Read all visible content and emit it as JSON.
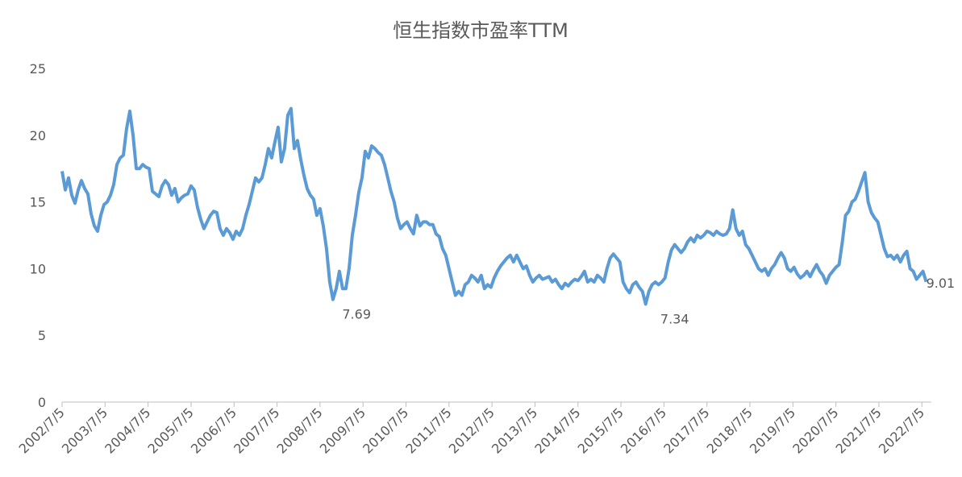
{
  "chart_data": {
    "type": "line",
    "title": "恒生指数市盈率TTM",
    "x": [
      2002.5,
      2002.575,
      2002.65,
      2002.725,
      2002.8,
      2002.875,
      2002.95,
      2003.025,
      2003.1,
      2003.175,
      2003.25,
      2003.325,
      2003.4,
      2003.475,
      2003.55,
      2003.625,
      2003.7,
      2003.775,
      2003.85,
      2003.925,
      2004,
      2004.075,
      2004.15,
      2004.225,
      2004.3,
      2004.375,
      2004.45,
      2004.525,
      2004.6,
      2004.675,
      2004.75,
      2004.825,
      2004.9,
      2004.975,
      2005.05,
      2005.125,
      2005.2,
      2005.275,
      2005.35,
      2005.425,
      2005.5,
      2005.575,
      2005.65,
      2005.725,
      2005.8,
      2005.875,
      2005.95,
      2006.025,
      2006.1,
      2006.175,
      2006.25,
      2006.325,
      2006.4,
      2006.475,
      2006.55,
      2006.625,
      2006.7,
      2006.775,
      2006.85,
      2006.925,
      2007,
      2007.075,
      2007.15,
      2007.225,
      2007.3,
      2007.375,
      2007.45,
      2007.525,
      2007.6,
      2007.675,
      2007.75,
      2007.825,
      2007.9,
      2007.975,
      2008.05,
      2008.125,
      2008.2,
      2008.275,
      2008.35,
      2008.425,
      2008.5,
      2008.575,
      2008.65,
      2008.725,
      2008.8,
      2008.875,
      2008.95,
      2009.025,
      2009.1,
      2009.175,
      2009.25,
      2009.325,
      2009.4,
      2009.475,
      2009.55,
      2009.625,
      2009.7,
      2009.775,
      2009.85,
      2009.925,
      2010,
      2010.075,
      2010.15,
      2010.225,
      2010.3,
      2010.375,
      2010.45,
      2010.525,
      2010.6,
      2010.675,
      2010.75,
      2010.825,
      2010.9,
      2010.975,
      2011.05,
      2011.125,
      2011.2,
      2011.275,
      2011.35,
      2011.425,
      2011.5,
      2011.575,
      2011.65,
      2011.725,
      2011.8,
      2011.875,
      2011.95,
      2012.025,
      2012.1,
      2012.175,
      2012.25,
      2012.325,
      2012.4,
      2012.475,
      2012.55,
      2012.625,
      2012.7,
      2012.775,
      2012.85,
      2012.925,
      2013,
      2013.075,
      2013.15,
      2013.225,
      2013.3,
      2013.375,
      2013.45,
      2013.525,
      2013.6,
      2013.675,
      2013.75,
      2013.825,
      2013.9,
      2013.975,
      2014.05,
      2014.125,
      2014.2,
      2014.275,
      2014.35,
      2014.425,
      2014.5,
      2014.575,
      2014.65,
      2014.725,
      2014.8,
      2014.875,
      2014.95,
      2015.025,
      2015.1,
      2015.175,
      2015.25,
      2015.325,
      2015.4,
      2015.475,
      2015.55,
      2015.625,
      2015.7,
      2015.775,
      2015.85,
      2015.925,
      2016,
      2016.075,
      2016.15,
      2016.225,
      2016.3,
      2016.375,
      2016.45,
      2016.525,
      2016.6,
      2016.675,
      2016.75,
      2016.825,
      2016.9,
      2016.975,
      2017.05,
      2017.125,
      2017.2,
      2017.275,
      2017.35,
      2017.425,
      2017.5,
      2017.575,
      2017.65,
      2017.725,
      2017.8,
      2017.875,
      2017.95,
      2018.025,
      2018.1,
      2018.175,
      2018.25,
      2018.325,
      2018.4,
      2018.475,
      2018.55,
      2018.625,
      2018.7,
      2018.775,
      2018.85,
      2018.925,
      2019,
      2019.075,
      2019.15,
      2019.225,
      2019.3,
      2019.375,
      2019.45,
      2019.525,
      2019.6,
      2019.675,
      2019.75,
      2019.825,
      2019.9,
      2019.975,
      2020.05,
      2020.125,
      2020.2,
      2020.275,
      2020.35,
      2020.425,
      2020.5,
      2020.575,
      2020.65,
      2020.725,
      2020.8,
      2020.875,
      2020.95,
      2021.025,
      2021.1,
      2021.175,
      2021.25,
      2021.325,
      2021.4,
      2021.475,
      2021.55,
      2021.625,
      2021.7,
      2021.775,
      2021.85,
      2021.925,
      2022,
      2022.075,
      2022.15,
      2022.225,
      2022.3,
      2022.375,
      2022.45,
      2022.525,
      2022.6
    ],
    "series": [
      {
        "color": "#5b9bd5",
        "values": [
          17.3,
          15.9,
          16.8,
          15.5,
          14.9,
          15.9,
          16.6,
          16.0,
          15.6,
          14.1,
          13.2,
          12.8,
          14.0,
          14.8,
          15.0,
          15.5,
          16.3,
          17.8,
          18.3,
          18.5,
          20.5,
          21.8,
          20.0,
          17.5,
          17.5,
          17.8,
          17.6,
          17.5,
          15.8,
          15.6,
          15.4,
          16.2,
          16.6,
          16.3,
          15.5,
          16.0,
          15.0,
          15.3,
          15.5,
          15.6,
          16.2,
          15.9,
          14.6,
          13.7,
          13.0,
          13.5,
          14.0,
          14.3,
          14.2,
          13.0,
          12.5,
          13.0,
          12.7,
          12.2,
          12.8,
          12.5,
          13.0,
          14.0,
          14.8,
          15.8,
          16.8,
          16.5,
          16.8,
          17.8,
          19.0,
          18.3,
          19.5,
          20.6,
          18.0,
          19.0,
          21.5,
          22.0,
          19.0,
          19.6,
          18.2,
          17.0,
          16.0,
          15.5,
          15.2,
          14.0,
          14.5,
          13.2,
          11.5,
          9.0,
          7.69,
          8.5,
          9.8,
          8.5,
          8.5,
          10.0,
          12.5,
          14.0,
          15.7,
          16.8,
          18.8,
          18.3,
          19.2,
          19.0,
          18.7,
          18.5,
          17.8,
          16.8,
          15.8,
          15.0,
          13.8,
          13.0,
          13.3,
          13.5,
          13.0,
          12.6,
          14.0,
          13.2,
          13.5,
          13.5,
          13.3,
          13.3,
          12.6,
          12.4,
          11.5,
          11.0,
          10.0,
          9.0,
          8.0,
          8.3,
          8.0,
          8.8,
          9.0,
          9.5,
          9.3,
          9.0,
          9.5,
          8.5,
          8.8,
          8.6,
          9.3,
          9.8,
          10.2,
          10.5,
          10.8,
          11.0,
          10.5,
          11.0,
          10.5,
          10.0,
          10.2,
          9.5,
          9.0,
          9.3,
          9.5,
          9.2,
          9.3,
          9.4,
          9.0,
          9.2,
          8.8,
          8.5,
          8.9,
          8.7,
          9.0,
          9.2,
          9.1,
          9.4,
          9.8,
          9.0,
          9.2,
          9.0,
          9.5,
          9.3,
          9.0,
          10.0,
          10.8,
          11.1,
          10.8,
          10.5,
          9.0,
          8.5,
          8.2,
          8.8,
          9.0,
          8.6,
          8.3,
          7.34,
          8.3,
          8.8,
          9.0,
          8.8,
          9.0,
          9.3,
          10.5,
          11.4,
          11.8,
          11.5,
          11.2,
          11.5,
          12.0,
          12.3,
          12.0,
          12.5,
          12.3,
          12.5,
          12.8,
          12.7,
          12.5,
          12.8,
          12.6,
          12.5,
          12.6,
          13.0,
          14.4,
          13.0,
          12.5,
          12.8,
          11.8,
          11.5,
          11.0,
          10.5,
          10.0,
          9.8,
          10.0,
          9.5,
          10.0,
          10.3,
          10.8,
          11.2,
          10.8,
          10.0,
          9.8,
          10.1,
          9.6,
          9.3,
          9.5,
          9.8,
          9.4,
          9.9,
          10.3,
          9.8,
          9.5,
          8.9,
          9.5,
          9.8,
          10.1,
          10.3,
          12.0,
          14.0,
          14.3,
          15.0,
          15.2,
          15.8,
          16.5,
          17.2,
          15.0,
          14.2,
          13.8,
          13.5,
          12.5,
          11.5,
          10.9,
          11.0,
          10.7,
          11.0,
          10.5,
          11.0,
          11.3,
          10.0,
          9.8,
          9.2,
          9.5,
          9.8,
          9.01
        ]
      }
    ],
    "annotations": [
      {
        "x": 2009.2,
        "value": 7.69
      },
      {
        "x": 2016.6,
        "value": 7.34
      },
      {
        "x": 2022.6,
        "value": 9.01
      }
    ],
    "xlim": [
      2002.5,
      2022.72
    ],
    "xticks": [
      {
        "value": 2002.5,
        "label": "2002/7/5"
      },
      {
        "value": 2003.5,
        "label": "2003/7/5"
      },
      {
        "value": 2004.5,
        "label": "2004/7/5"
      },
      {
        "value": 2005.5,
        "label": "2005/7/5"
      },
      {
        "value": 2006.5,
        "label": "2006/7/5"
      },
      {
        "value": 2007.5,
        "label": "2007/7/5"
      },
      {
        "value": 2008.5,
        "label": "2008/7/5"
      },
      {
        "value": 2009.5,
        "label": "2009/7/5"
      },
      {
        "value": 2010.5,
        "label": "2010/7/5"
      },
      {
        "value": 2011.5,
        "label": "2011/7/5"
      },
      {
        "value": 2012.5,
        "label": "2012/7/5"
      },
      {
        "value": 2013.5,
        "label": "2013/7/5"
      },
      {
        "value": 2014.5,
        "label": "2014/7/5"
      },
      {
        "value": 2015.5,
        "label": "2015/7/5"
      },
      {
        "value": 2016.5,
        "label": "2016/7/5"
      },
      {
        "value": 2017.5,
        "label": "2017/7/5"
      },
      {
        "value": 2018.5,
        "label": "2018/7/5"
      },
      {
        "value": 2019.5,
        "label": "2019/7/5"
      },
      {
        "value": 2020.5,
        "label": "2020/7/5"
      },
      {
        "value": 2021.5,
        "label": "2021/7/5"
      },
      {
        "value": 2022.5,
        "label": "2022/7/5"
      }
    ],
    "ylim": [
      0,
      25
    ],
    "yticks": [
      0,
      5,
      10,
      15,
      20,
      25
    ],
    "grid": false
  }
}
